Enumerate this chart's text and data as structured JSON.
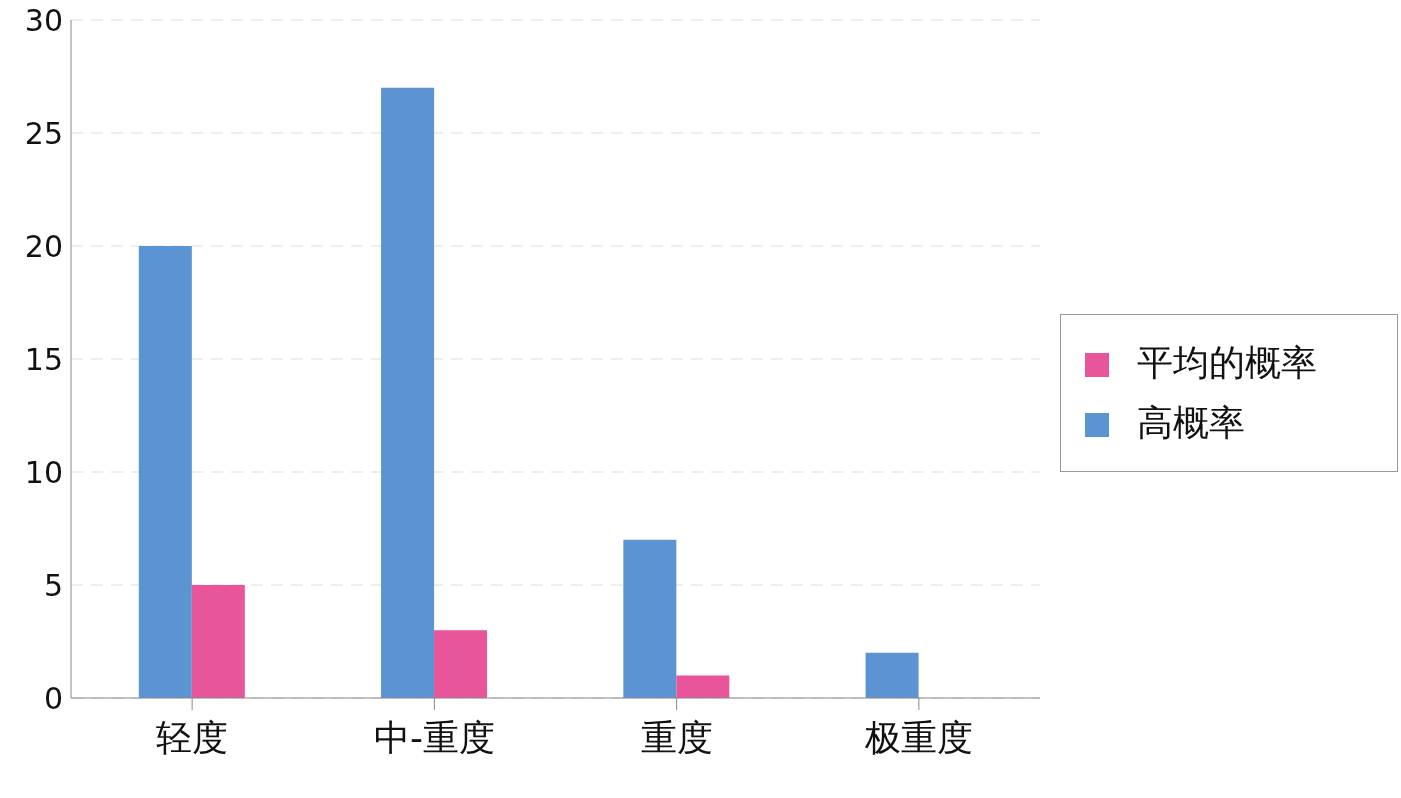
{
  "chart_data": {
    "type": "bar",
    "categories": [
      "轻度",
      "中-重度",
      "重度",
      "极重度"
    ],
    "series": [
      {
        "name": "高概率",
        "color": "#5b93d3",
        "values": [
          20,
          27,
          7,
          2
        ]
      },
      {
        "name": "平均的概率",
        "color": "#e8559a",
        "values": [
          5,
          3,
          1,
          0
        ]
      }
    ],
    "ylim": [
      0,
      30
    ],
    "yticks": [
      0,
      5,
      10,
      15,
      20,
      25,
      30
    ],
    "grid": "y",
    "legend": "right"
  }
}
